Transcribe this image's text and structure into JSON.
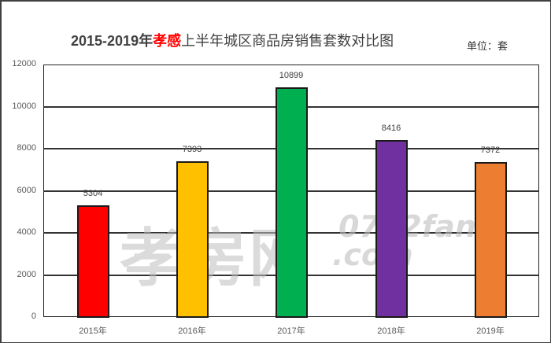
{
  "chart_data": {
    "type": "bar",
    "title": "2015-2019年孝感上半年城区商品房销售套数对比图",
    "title_parts": {
      "prefix": "2015-2019年",
      "highlight": "孝感",
      "suffix": "上半年城区商品房销售套数对比图"
    },
    "unit_label": "单位：套",
    "categories": [
      "2015年",
      "2016年",
      "2017年",
      "2018年",
      "2019年"
    ],
    "values": [
      5304,
      7393,
      10899,
      8416,
      7372
    ],
    "colors": [
      "#ff0000",
      "#ffc000",
      "#00b050",
      "#7030a0",
      "#ed7d31"
    ],
    "xlabel": "",
    "ylabel": "",
    "ylim": [
      0,
      12000
    ],
    "yticks": [
      "0",
      "2000",
      "4000",
      "6000",
      "8000",
      "10000",
      "12000"
    ],
    "grid": true,
    "legend": "none",
    "data_labels": [
      "5304",
      "7393",
      "10899",
      "8416",
      "7372"
    ]
  },
  "watermark": {
    "cn": "孝房网",
    "en_line1": "0712fang",
    "en_line2": ".com"
  }
}
